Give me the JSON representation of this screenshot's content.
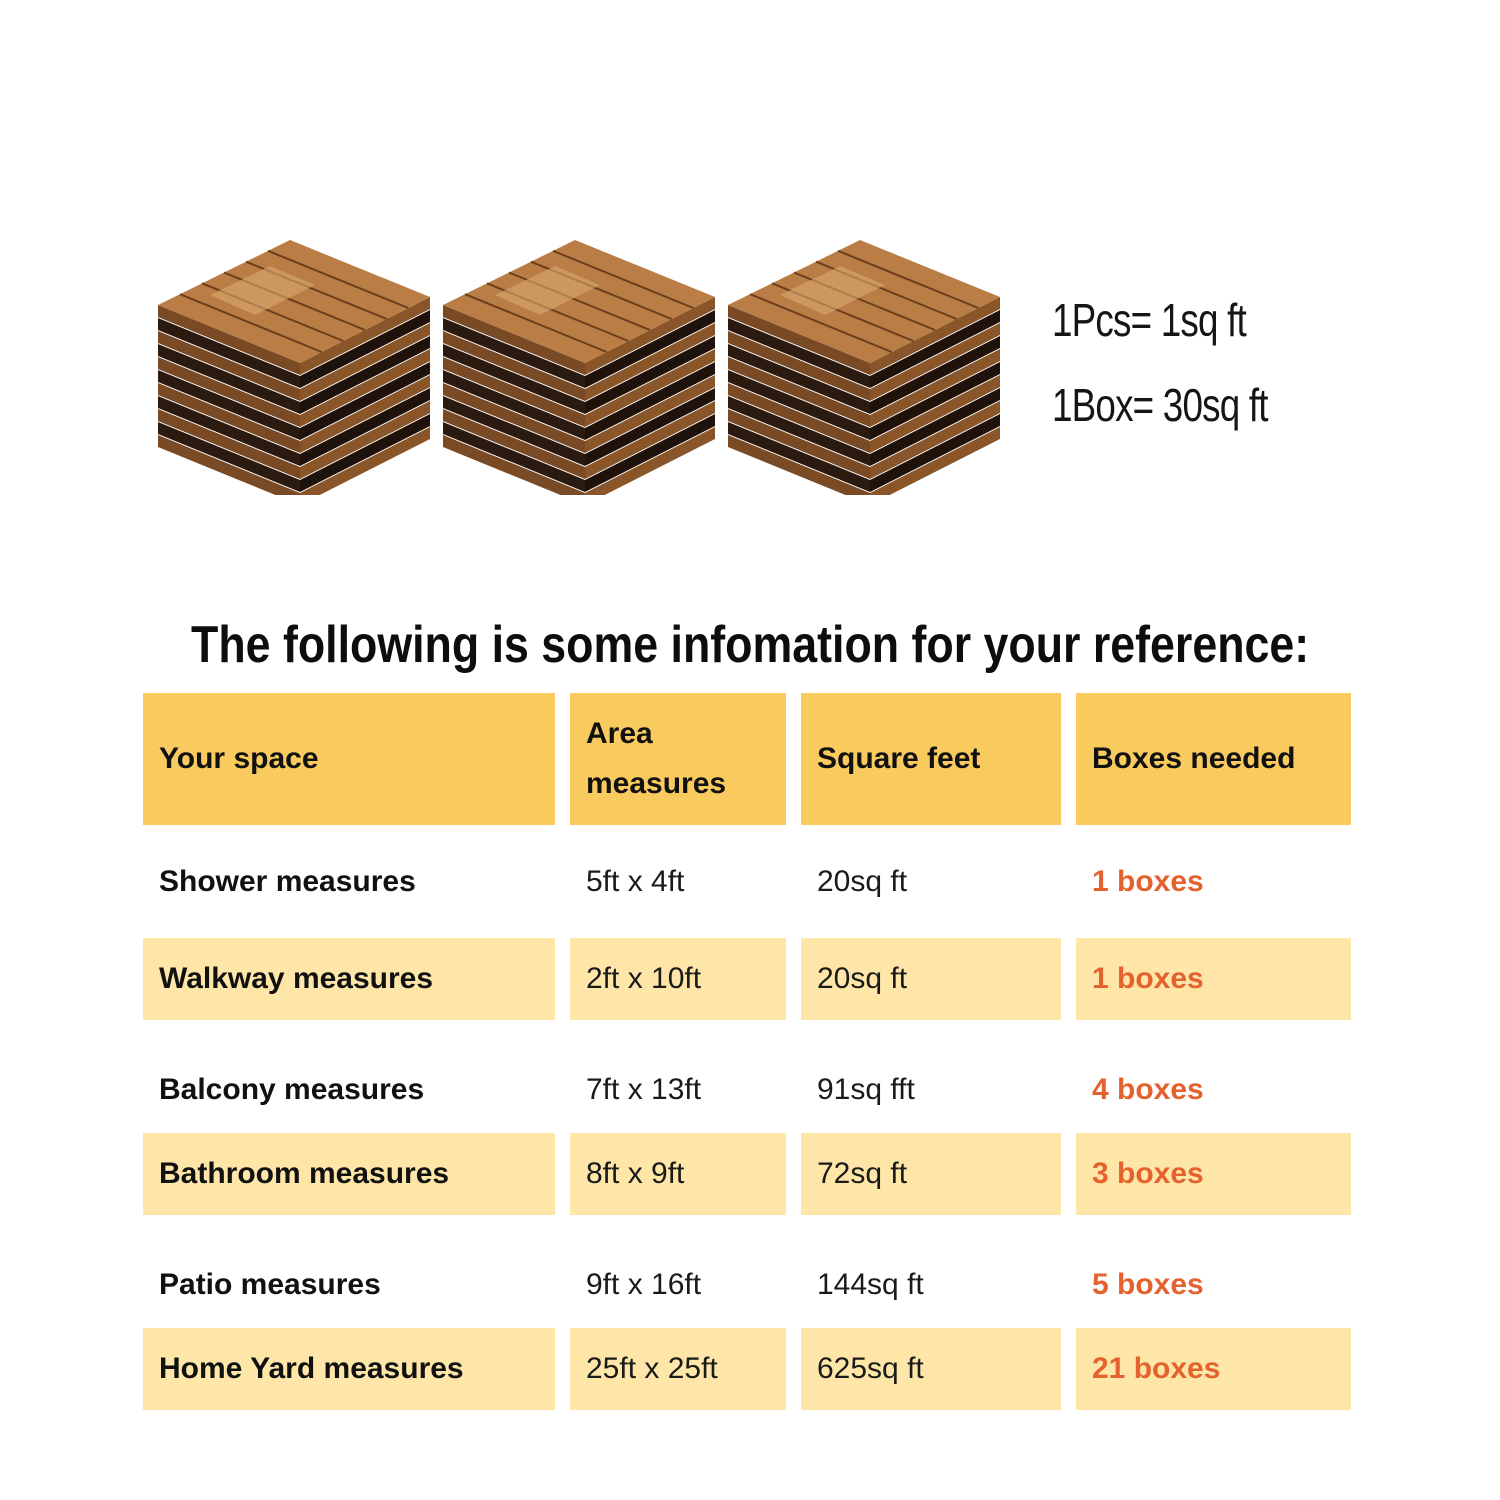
{
  "spec": {
    "piece": "1Pcs= 1sq ft",
    "box": "1Box= 30sq ft"
  },
  "heading": "The following is some infomation for your reference:",
  "table": {
    "headers": [
      "Your space",
      "Area measures",
      "Square feet",
      "Boxes needed"
    ],
    "rows": [
      [
        "Shower measures",
        "5ft x 4ft",
        "20sq ft",
        "1 boxes"
      ],
      [
        "Walkway measures",
        "2ft x 10ft",
        "20sq ft",
        "1 boxes"
      ],
      [
        "Balcony measures",
        "7ft x 13ft",
        "91sq fft",
        "4 boxes"
      ],
      [
        "Bathroom measures",
        "8ft x 9ft",
        "72sq ft",
        "3 boxes"
      ],
      [
        "Patio measures",
        "9ft x 16ft",
        "144sq ft",
        "5 boxes"
      ],
      [
        "Home Yard measures",
        "25ft x 25ft",
        "625sq ft",
        "21 boxes"
      ]
    ]
  },
  "colors": {
    "header_fill": "#f9ca5e",
    "band_fill": "#fde6a7",
    "boxes_text": "#e5622e"
  }
}
